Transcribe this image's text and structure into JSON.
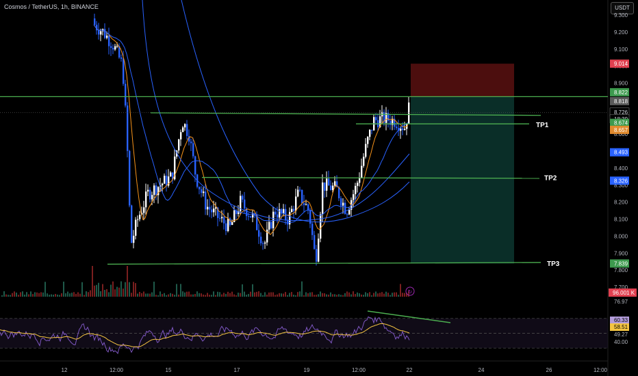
{
  "header": {
    "title": "Cosmos / TetherUS, 1h, BINANCE",
    "currency": "USDT"
  },
  "colors": {
    "up": "#ffffff",
    "down": "#2962ff",
    "level": "#4caf50",
    "ma_blue": "#2962ff",
    "ma_orange": "#f7931a",
    "stop": "#8b1a1a",
    "target": "#0e3d36",
    "rsi": "#7e57c2",
    "rsi_ma": "#f5c542"
  },
  "chart_data": {
    "type": "candlestick",
    "symbol": "ATOMUSDT",
    "ylim": [
      7.7,
      9.4
    ],
    "y_ticks": [
      "9.300",
      "9.200",
      "9.100",
      "9.000",
      "8.900",
      "8.800",
      "8.700",
      "8.600",
      "8.500",
      "8.400",
      "8.300",
      "8.200",
      "8.100",
      "8.000",
      "7.900",
      "7.800",
      "7.700"
    ],
    "x_ticks": [
      "12",
      "12:00",
      "15",
      "15",
      "17",
      "19",
      "12:00",
      "22",
      "24",
      "26",
      "12:00"
    ],
    "price_badges": [
      {
        "label": "9.014",
        "value": 9.014,
        "color": "#e04050"
      },
      {
        "label": "8.822",
        "value": 8.822,
        "color": "#3d9a4e"
      },
      {
        "label": "8.818",
        "value": 8.818,
        "color": "#5a5a5a"
      },
      {
        "label": "8.726",
        "value": 8.726,
        "color": "#cfcfcf"
      },
      {
        "label": "18:39",
        "value": 8.706,
        "color": "#cfcfcf"
      },
      {
        "label": "8.674",
        "value": 8.674,
        "color": "#3d9a4e"
      },
      {
        "label": "8.657",
        "value": 8.657,
        "color": "#e08a2e"
      },
      {
        "label": "8.493",
        "value": 8.493,
        "color": "#2962ff"
      },
      {
        "label": "8.326",
        "value": 8.326,
        "color": "#2962ff"
      },
      {
        "label": "7.839",
        "value": 7.839,
        "color": "#3d9a4e"
      }
    ],
    "levels": [
      {
        "label": "",
        "value": 8.82
      },
      {
        "label": "",
        "value": 8.71
      },
      {
        "label": "TP1",
        "value": 8.66
      },
      {
        "label": "TP2",
        "value": 8.35
      },
      {
        "label": "TP3",
        "value": 7.84
      }
    ],
    "position": {
      "entry": 8.82,
      "stop": 9.014,
      "target": 7.839
    },
    "volume_label": "96.001 K",
    "rsi": {
      "labels": [
        "76.97",
        "60.33",
        "58.51",
        "49.27",
        "40.00"
      ],
      "values": [
        76.97,
        60.33,
        58.51,
        49.27,
        40.0
      ]
    }
  }
}
